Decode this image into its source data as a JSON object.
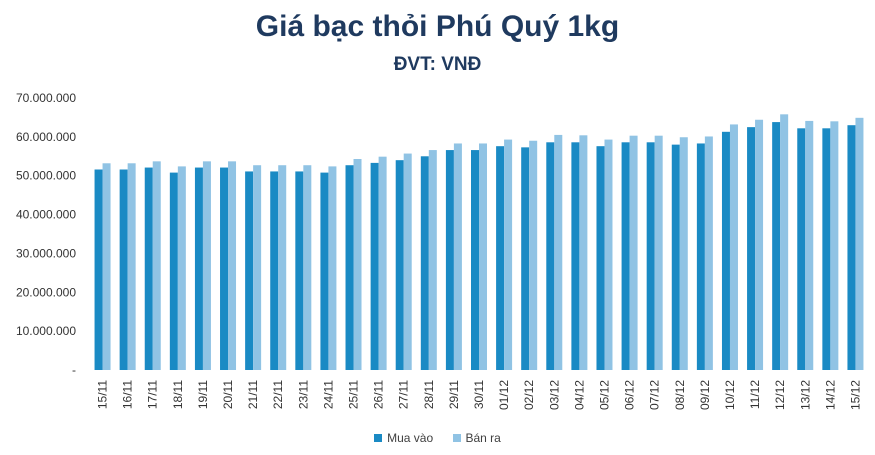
{
  "colors": {
    "buy": "#1a8ac4",
    "sell": "#90c3e4",
    "title": "#1f3a5f",
    "axis_text": "#333333",
    "grid": "#d9d9d9"
  },
  "chart_data": {
    "type": "bar",
    "title": "Giá bạc thỏi Phú Quý 1kg",
    "subtitle": "ĐVT: VNĐ",
    "xlabel": "",
    "ylabel": "",
    "ylim": [
      0,
      70000000
    ],
    "y_ticks": [
      "-",
      "10.000.000",
      "20.000.000",
      "30.000.000",
      "40.000.000",
      "50.000.000",
      "60.000.000",
      "70.000.000"
    ],
    "legend_position": "bottom",
    "grid": false,
    "categories": [
      "15/11",
      "16/11",
      "17/11",
      "18/11",
      "19/11",
      "20/11",
      "21/11",
      "22/11",
      "23/11",
      "24/11",
      "25/11",
      "26/11",
      "27/11",
      "28/11",
      "29/11",
      "30/11",
      "01/12",
      "02/12",
      "03/12",
      "04/12",
      "05/12",
      "06/12",
      "07/12",
      "08/12",
      "09/12",
      "10/12",
      "11/12",
      "12/12",
      "13/12",
      "14/12",
      "15/12"
    ],
    "series": [
      {
        "name": "Mua vào",
        "color": "#1a8ac4",
        "values": [
          51600000,
          51600000,
          52100000,
          50800000,
          52100000,
          52100000,
          51100000,
          51100000,
          51100000,
          50800000,
          52700000,
          53300000,
          54000000,
          55000000,
          56600000,
          56600000,
          57600000,
          57300000,
          58600000,
          58600000,
          57600000,
          58600000,
          58600000,
          58000000,
          58300000,
          61300000,
          62500000,
          63800000,
          62200000,
          62200000,
          63000000
        ]
      },
      {
        "name": "Bán ra",
        "color": "#90c3e4",
        "values": [
          53200000,
          53200000,
          53700000,
          52400000,
          53700000,
          53700000,
          52700000,
          52700000,
          52700000,
          52400000,
          54300000,
          54900000,
          55700000,
          56600000,
          58300000,
          58300000,
          59300000,
          59000000,
          60500000,
          60400000,
          59300000,
          60300000,
          60300000,
          59900000,
          60100000,
          63200000,
          64400000,
          65800000,
          64100000,
          64000000,
          64900000
        ]
      }
    ]
  }
}
